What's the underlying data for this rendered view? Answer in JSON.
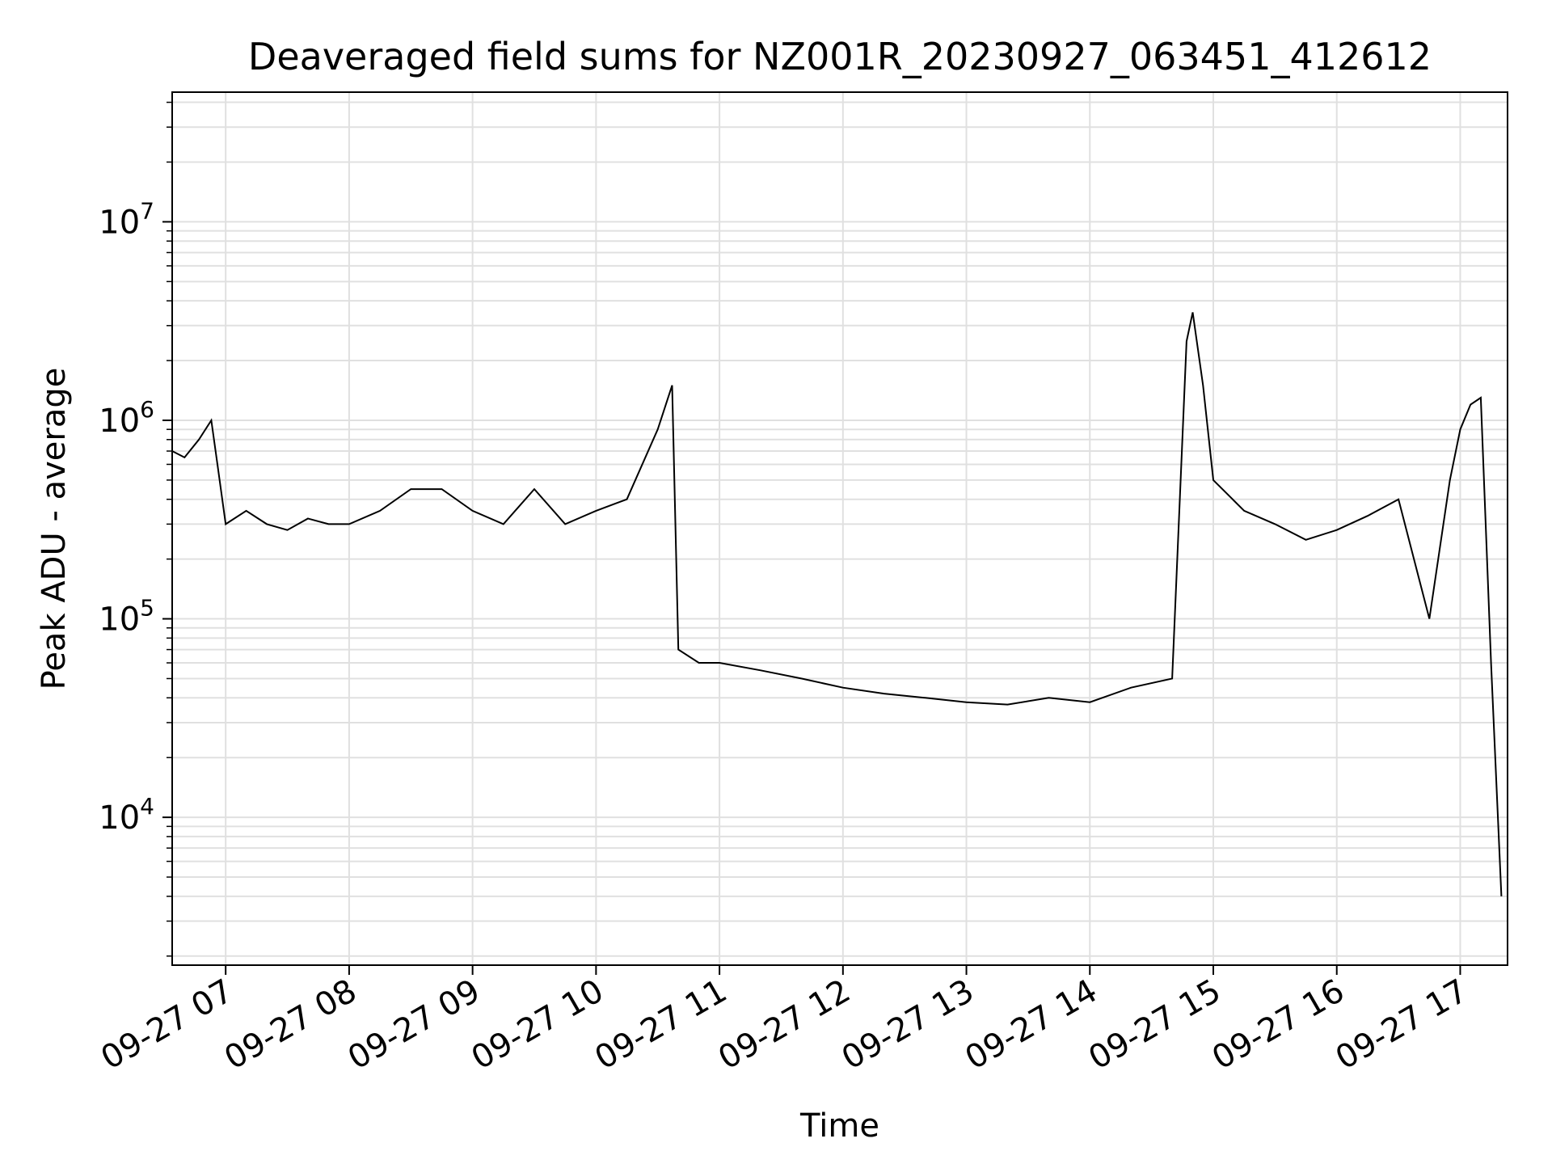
{
  "chart_data": {
    "type": "line",
    "title": "Deaveraged field sums for NZ001R_20230927_063451_412612",
    "xlabel": "Time",
    "ylabel": "Peak ADU - average",
    "yscale": "log",
    "ylim": [
      1800,
      45000000
    ],
    "xlim": [
      "2023-09-27 06:34",
      "2023-09-27 17:23"
    ],
    "grid": true,
    "line_color": "#000000",
    "grid_color": "#e0e0e0",
    "x_ticks": [
      {
        "t": "2023-09-27 07:00",
        "label": "09-27 07"
      },
      {
        "t": "2023-09-27 08:00",
        "label": "09-27 08"
      },
      {
        "t": "2023-09-27 09:00",
        "label": "09-27 09"
      },
      {
        "t": "2023-09-27 10:00",
        "label": "09-27 10"
      },
      {
        "t": "2023-09-27 11:00",
        "label": "09-27 11"
      },
      {
        "t": "2023-09-27 12:00",
        "label": "09-27 12"
      },
      {
        "t": "2023-09-27 13:00",
        "label": "09-27 13"
      },
      {
        "t": "2023-09-27 14:00",
        "label": "09-27 14"
      },
      {
        "t": "2023-09-27 15:00",
        "label": "09-27 15"
      },
      {
        "t": "2023-09-27 16:00",
        "label": "09-27 16"
      },
      {
        "t": "2023-09-27 17:00",
        "label": "09-27 17"
      }
    ],
    "y_ticks": [
      {
        "value": 10000,
        "base": "10",
        "exp": "4"
      },
      {
        "value": 100000,
        "base": "10",
        "exp": "5"
      },
      {
        "value": 1000000,
        "base": "10",
        "exp": "6"
      },
      {
        "value": 10000000,
        "base": "10",
        "exp": "7"
      }
    ],
    "series": [
      {
        "x": [
          "2023-09-27 06:34",
          "2023-09-27 06:40",
          "2023-09-27 06:47",
          "2023-09-27 06:53",
          "2023-09-27 06:56",
          "2023-09-27 07:00",
          "2023-09-27 07:10",
          "2023-09-27 07:20",
          "2023-09-27 07:30",
          "2023-09-27 07:40",
          "2023-09-27 07:50",
          "2023-09-27 08:00",
          "2023-09-27 08:15",
          "2023-09-27 08:30",
          "2023-09-27 08:45",
          "2023-09-27 09:00",
          "2023-09-27 09:15",
          "2023-09-27 09:30",
          "2023-09-27 09:45",
          "2023-09-27 10:00",
          "2023-09-27 10:15",
          "2023-09-27 10:30",
          "2023-09-27 10:37",
          "2023-09-27 10:40",
          "2023-09-27 10:50",
          "2023-09-27 11:00",
          "2023-09-27 11:20",
          "2023-09-27 11:40",
          "2023-09-27 12:00",
          "2023-09-27 12:20",
          "2023-09-27 12:40",
          "2023-09-27 13:00",
          "2023-09-27 13:20",
          "2023-09-27 13:40",
          "2023-09-27 14:00",
          "2023-09-27 14:20",
          "2023-09-27 14:40",
          "2023-09-27 14:47",
          "2023-09-27 14:50",
          "2023-09-27 14:55",
          "2023-09-27 15:00",
          "2023-09-27 15:15",
          "2023-09-27 15:30",
          "2023-09-27 15:45",
          "2023-09-27 16:00",
          "2023-09-27 16:15",
          "2023-09-27 16:30",
          "2023-09-27 16:45",
          "2023-09-27 16:55",
          "2023-09-27 17:00",
          "2023-09-27 17:05",
          "2023-09-27 17:10",
          "2023-09-27 17:15",
          "2023-09-27 17:20"
        ],
        "y": [
          700000,
          650000,
          800000,
          1000000,
          600000,
          300000,
          350000,
          300000,
          280000,
          320000,
          300000,
          300000,
          350000,
          450000,
          450000,
          350000,
          300000,
          450000,
          300000,
          350000,
          400000,
          900000,
          1500000,
          70000,
          60000,
          60000,
          55000,
          50000,
          45000,
          42000,
          40000,
          38000,
          37000,
          40000,
          38000,
          45000,
          50000,
          2500000,
          3500000,
          1500000,
          500000,
          350000,
          300000,
          250000,
          280000,
          330000,
          400000,
          100000,
          500000,
          900000,
          1200000,
          1300000,
          60000,
          4000
        ]
      }
    ]
  }
}
